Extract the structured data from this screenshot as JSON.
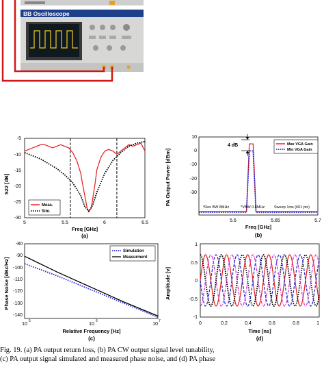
{
  "photo": {
    "label": "BB Oscilloscope"
  },
  "charts": {
    "a": {
      "sublabel": "(a)",
      "xlabel": "Freq [GHz]",
      "ylabel": "S22 [dB]",
      "xticks": [
        "5",
        "5.5",
        "6",
        "6.5"
      ],
      "yticks": [
        "-5",
        "-10",
        "-15",
        "-20",
        "-25",
        "-30"
      ],
      "legend": [
        "Meas.",
        "Sim."
      ]
    },
    "b": {
      "sublabel": "(b)",
      "xlabel": "Freq [GHz]",
      "ylabel": "PA Output Power [dBm]",
      "xticks": [
        "5.6",
        "5.65",
        "5.7"
      ],
      "yticks": [
        "10",
        "0",
        "-10",
        "-20",
        "-30"
      ],
      "legend": [
        "Max VGA Gain",
        "Min VGA Gain"
      ],
      "annotation_4db": "4 dB",
      "notes": [
        "*Res BW 8MHz",
        "*VBW 0.8MHz",
        "Sweep 1ms (601 pts)"
      ]
    },
    "c": {
      "sublabel": "(c)",
      "xlabel": "Relative Frequency [Hz]",
      "ylabel": "Phase Noise [dBc/Hz]",
      "xticks_base": [
        "10",
        "10",
        "10"
      ],
      "xticks_exp": [
        "5",
        "6",
        "7"
      ],
      "yticks": [
        "-80",
        "-90",
        "-100",
        "-110",
        "-120",
        "-130",
        "-140"
      ],
      "legend": [
        "Simulation",
        "Measurment"
      ]
    },
    "d": {
      "sublabel": "(d)",
      "xlabel": "Time [ns]",
      "ylabel": "Amplitude [v]",
      "xticks": [
        "0",
        "0.2",
        "0.4",
        "0.6",
        "0.8",
        "1"
      ],
      "yticks": [
        "1",
        "0.5",
        "0",
        "-0.5",
        "-1"
      ]
    }
  },
  "caption": {
    "line1": "Fig. 19.   (a) PA output return loss, (b) PA CW output signal level tunability,",
    "line2": "(c) PA output signal simulated and measured phase noise, and (d) PA phase"
  },
  "chart_data": [
    {
      "type": "line",
      "id": "a",
      "xlabel": "Freq [GHz]",
      "ylabel": "S22 [dB]",
      "xlim": [
        5,
        6.5
      ],
      "ylim": [
        -30,
        -5
      ],
      "series": [
        {
          "name": "Meas.",
          "color": "#e8252a",
          "style": "solid",
          "x": [
            5.0,
            5.05,
            5.1,
            5.15,
            5.2,
            5.25,
            5.3,
            5.35,
            5.4,
            5.45,
            5.5,
            5.55,
            5.6,
            5.65,
            5.7,
            5.72,
            5.75,
            5.78,
            5.8,
            5.83,
            5.85,
            5.88,
            5.9,
            5.95,
            6.0,
            6.05,
            6.1,
            6.15,
            6.2,
            6.25,
            6.3,
            6.35,
            6.4,
            6.45,
            6.5
          ],
          "y": [
            -9,
            -8.5,
            -8,
            -7.5,
            -7,
            -7,
            -7.5,
            -8,
            -7.5,
            -7,
            -7.5,
            -8,
            -9.5,
            -12,
            -16,
            -19,
            -23,
            -27,
            -28,
            -27,
            -24,
            -19,
            -15,
            -11,
            -9,
            -8.5,
            -9,
            -10,
            -9,
            -8,
            -7,
            -7.5,
            -7,
            -6.5,
            -9
          ]
        },
        {
          "name": "Sim.",
          "color": "#000000",
          "style": "dotted",
          "x": [
            5.0,
            5.1,
            5.2,
            5.3,
            5.4,
            5.5,
            5.6,
            5.7,
            5.75,
            5.8,
            5.85,
            5.9,
            6.0,
            6.1,
            6.2,
            6.3,
            6.4,
            6.5
          ],
          "y": [
            -9.5,
            -10.5,
            -11.5,
            -13,
            -14.5,
            -16.5,
            -19,
            -23,
            -26.5,
            -28,
            -26,
            -22,
            -16,
            -12,
            -9.5,
            -7.5,
            -6.5,
            -6
          ]
        }
      ],
      "markers": [
        {
          "x": 5.57,
          "style": "dashed"
        },
        {
          "x": 6.15,
          "style": "dashed"
        }
      ]
    },
    {
      "type": "line",
      "id": "b",
      "xlabel": "Freq [GHz]",
      "ylabel": "PA Output Power [dBm]",
      "xlim": [
        5.575,
        5.7
      ],
      "ylim": [
        -35,
        10
      ],
      "series": [
        {
          "name": "Max VGA Gain",
          "color": "#e8252a",
          "style": "solid",
          "x": [
            5.575,
            5.6,
            5.62,
            5.625,
            5.628,
            5.63,
            5.632,
            5.635,
            5.64,
            5.66,
            5.68,
            5.7
          ],
          "y": [
            -33,
            -33,
            -33,
            -33,
            6,
            6,
            6,
            -33,
            -33,
            -33,
            -33,
            -33
          ]
        },
        {
          "name": "Min VGA Gain",
          "color": "#2b2bd6",
          "style": "dotted",
          "x": [
            5.575,
            5.6,
            5.62,
            5.625,
            5.628,
            5.63,
            5.632,
            5.635,
            5.64,
            5.66,
            5.68,
            5.7
          ],
          "y": [
            -33.5,
            -33.5,
            -33.5,
            -33.5,
            2,
            2,
            2,
            -33.5,
            -33.5,
            -33.5,
            -33.5,
            -33.5
          ]
        }
      ]
    },
    {
      "type": "line",
      "id": "c",
      "xlabel": "Relative Frequency [Hz]",
      "ylabel": "Phase Noise [dBc/Hz]",
      "xscale": "log",
      "xlim": [
        100000,
        10000000
      ],
      "ylim": [
        -140,
        -80
      ],
      "series": [
        {
          "name": "Simulation",
          "color": "#2b2bd6",
          "style": "dotted",
          "x": [
            100000,
            316228,
            1000000,
            3162278,
            10000000
          ],
          "y": [
            -96,
            -106,
            -117,
            -128,
            -139
          ]
        },
        {
          "name": "Measurment",
          "color": "#000000",
          "style": "solid",
          "x": [
            100000,
            316228,
            1000000,
            3162278,
            10000000
          ],
          "y": [
            -90,
            -103,
            -115,
            -127,
            -138
          ]
        }
      ]
    },
    {
      "type": "line",
      "id": "d",
      "xlabel": "Time [ns]",
      "ylabel": "Amplitude [v]",
      "xlim": [
        0,
        1
      ],
      "ylim": [
        -1,
        1
      ],
      "series": [
        {
          "name": "",
          "color": "#e8252a",
          "style": "solid",
          "freq_ghz": 5.65,
          "amplitude": 0.7,
          "phase_deg": 0
        },
        {
          "name": "",
          "color": "#000000",
          "style": "dotted",
          "freq_ghz": 5.65,
          "amplitude": 0.7,
          "phase_deg": 90
        },
        {
          "name": "",
          "color": "#2b2bd6",
          "style": "dashed",
          "freq_ghz": 5.65,
          "amplitude": 0.7,
          "phase_deg": 180
        },
        {
          "name": "",
          "color": "#cc33cc",
          "style": "dashdot",
          "freq_ghz": 5.65,
          "amplitude": 0.7,
          "phase_deg": 270
        }
      ]
    }
  ]
}
